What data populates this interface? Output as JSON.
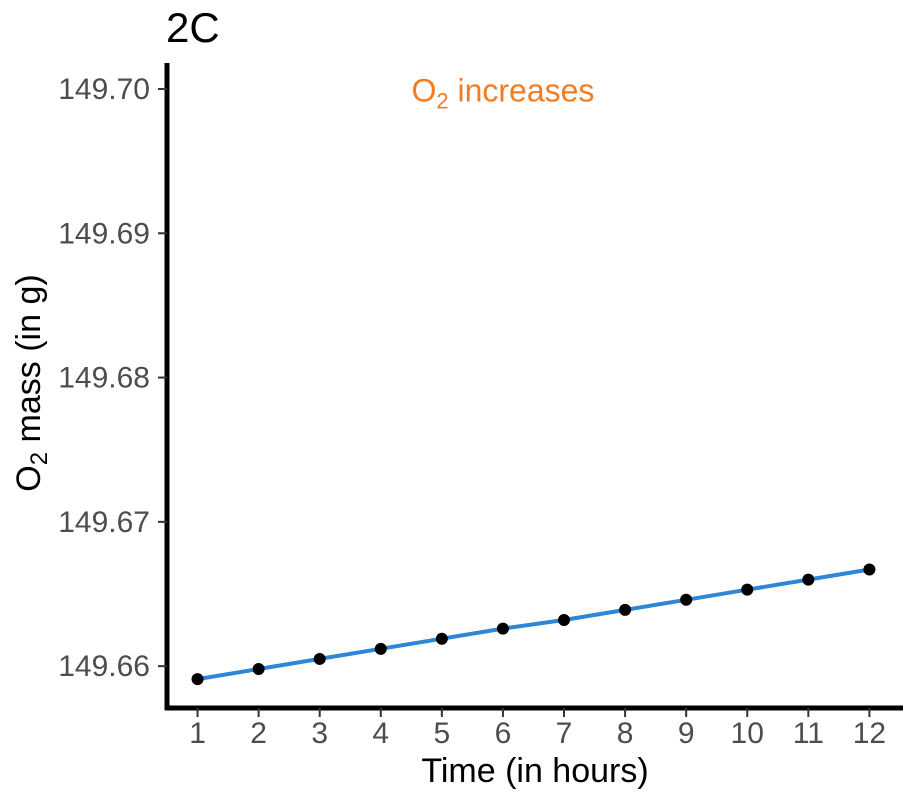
{
  "chart_data": {
    "type": "line",
    "title": "2C",
    "xlabel": "Time (in hours)",
    "ylabel": {
      "prefix": "O",
      "subscript": "2",
      "suffix": " mass (in g)"
    },
    "annotation": {
      "prefix": "O",
      "subscript": "2",
      "suffix": " increases",
      "x": 6.0,
      "y": 149.6999,
      "color": "#F47B20"
    },
    "x": [
      1,
      2,
      3,
      4,
      5,
      6,
      7,
      8,
      9,
      10,
      11,
      12
    ],
    "y": [
      149.6591,
      149.6598,
      149.6605,
      149.6612,
      149.6619,
      149.6626,
      149.6632,
      149.6639,
      149.6646,
      149.6653,
      149.666,
      149.6667
    ],
    "xlim": [
      0.5,
      12.55
    ],
    "ylim": [
      149.6571,
      149.7018
    ],
    "xticks": [
      1,
      2,
      3,
      4,
      5,
      6,
      7,
      8,
      9,
      10,
      11,
      12
    ],
    "yticks": [
      149.66,
      149.67,
      149.68,
      149.69,
      149.7
    ],
    "ytick_labels": [
      "149.66",
      "149.67",
      "149.68",
      "149.69",
      "149.70"
    ],
    "line_color": "#2E86D6",
    "point_color": "#000000",
    "grid": false,
    "legend": "none"
  }
}
